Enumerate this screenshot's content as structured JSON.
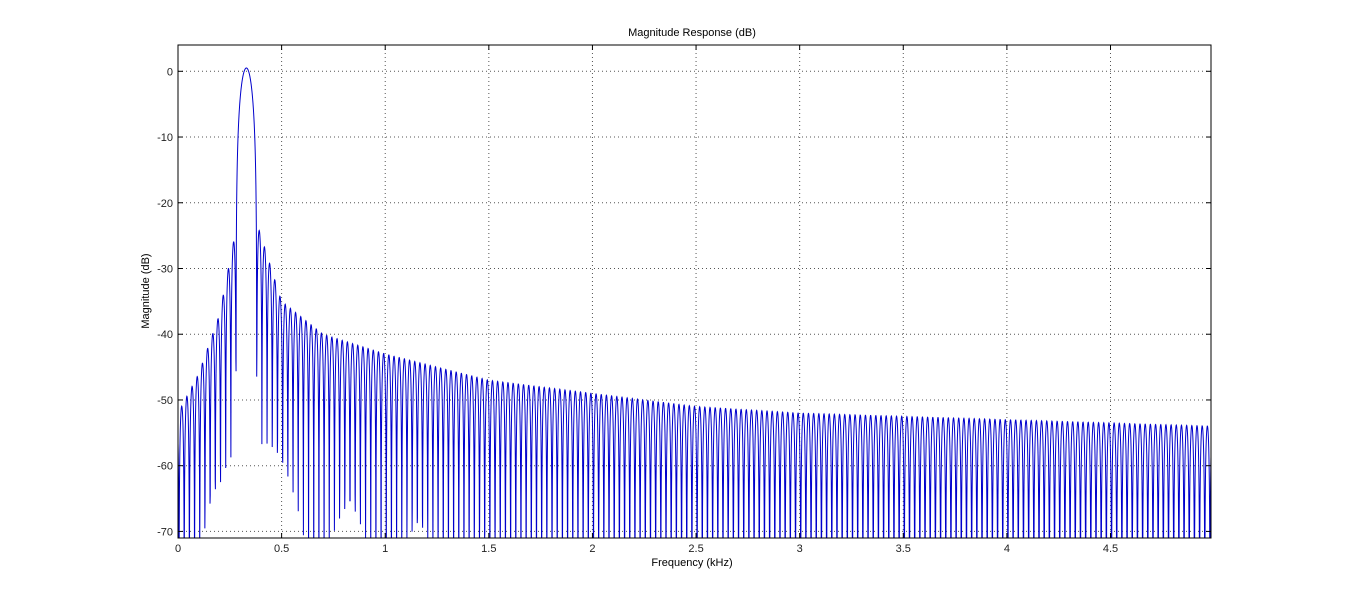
{
  "window": {
    "background": "#ffffff"
  },
  "chart_data": {
    "type": "line",
    "title": "Magnitude Response (dB)",
    "xlabel": "Frequency (kHz)",
    "ylabel": "Magnitude (dB)",
    "xlim": [
      0,
      5
    ],
    "ylim": [
      -71,
      4
    ],
    "grid": true,
    "x_ticks": [
      {
        "value": 0,
        "label": "0"
      },
      {
        "value": 0.5,
        "label": "0.5"
      },
      {
        "value": 1,
        "label": "1"
      },
      {
        "value": 1.5,
        "label": "1.5"
      },
      {
        "value": 2,
        "label": "2"
      },
      {
        "value": 2.5,
        "label": "2.5"
      },
      {
        "value": 3,
        "label": "3"
      },
      {
        "value": 3.5,
        "label": "3.5"
      },
      {
        "value": 4,
        "label": "4"
      },
      {
        "value": 4.5,
        "label": "4.5"
      }
    ],
    "y_ticks": [
      {
        "value": 0,
        "label": "0"
      },
      {
        "value": -10,
        "label": "-10"
      },
      {
        "value": -20,
        "label": "-20"
      },
      {
        "value": -30,
        "label": "-30"
      },
      {
        "value": -40,
        "label": "-40"
      },
      {
        "value": -50,
        "label": "-50"
      },
      {
        "value": -60,
        "label": "-60"
      },
      {
        "value": -70,
        "label": "-70"
      }
    ],
    "series": [
      {
        "color": "#0000cc",
        "description_points": {
          "main_lobe": {
            "center_khz": 0.33,
            "peak_db": 0.5,
            "half_width_khz": 0.05
          },
          "lobe_spacing_khz": 0.025,
          "nearest_sidelobe_db": -23,
          "sidelobe_envelope": [
            {
              "x": 0.0,
              "y": -52
            },
            {
              "x": 0.1,
              "y": -46
            },
            {
              "x": 0.2,
              "y": -37
            },
            {
              "x": 0.28,
              "y": -24
            },
            {
              "x": 0.38,
              "y": -23
            },
            {
              "x": 0.5,
              "y": -35
            },
            {
              "x": 0.7,
              "y": -40
            },
            {
              "x": 1.0,
              "y": -43
            },
            {
              "x": 1.5,
              "y": -47
            },
            {
              "x": 2.0,
              "y": -49
            },
            {
              "x": 2.5,
              "y": -51
            },
            {
              "x": 3.0,
              "y": -52
            },
            {
              "x": 4.0,
              "y": -53
            },
            {
              "x": 5.0,
              "y": -54
            }
          ]
        }
      }
    ]
  }
}
